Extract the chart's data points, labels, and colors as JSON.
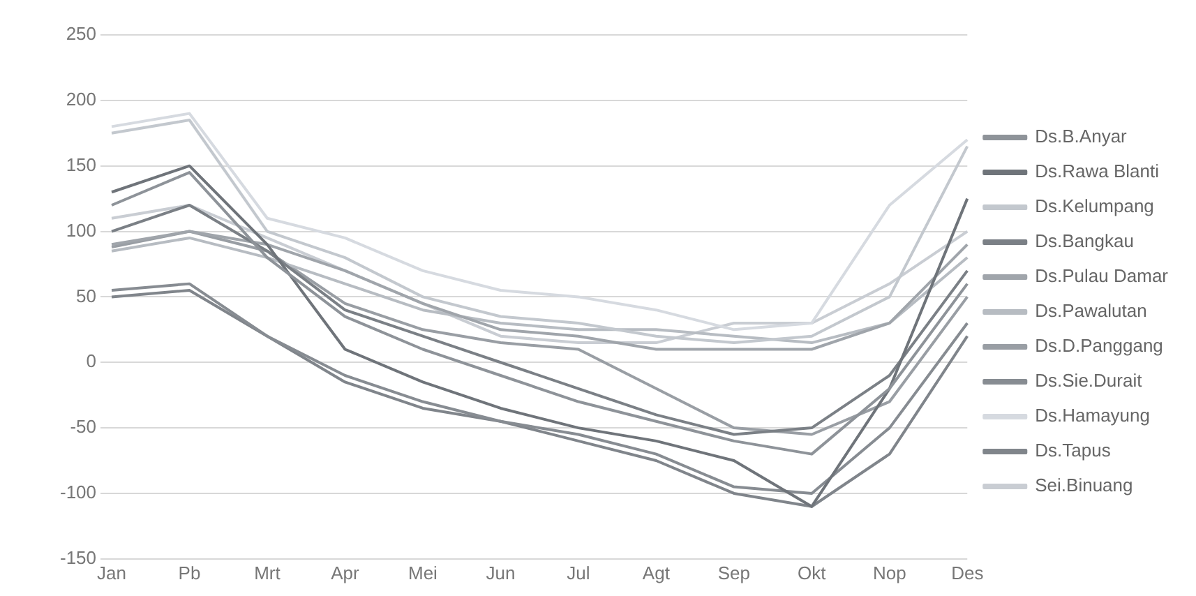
{
  "chart_data": {
    "type": "line",
    "categories": [
      "Jan",
      "Pb",
      "Mrt",
      "Apr",
      "Mei",
      "Jun",
      "Jul",
      "Agt",
      "Sep",
      "Okt",
      "Nop",
      "Des"
    ],
    "series": [
      {
        "name": "Ds.B.Anyar",
        "color": "#8e9399",
        "values": [
          120,
          145,
          80,
          35,
          10,
          -10,
          -30,
          -45,
          -60,
          -70,
          -20,
          60
        ]
      },
      {
        "name": "Ds.Rawa Blanti",
        "color": "#6f747a",
        "values": [
          130,
          150,
          90,
          10,
          -15,
          -35,
          -50,
          -60,
          -75,
          -110,
          -20,
          125
        ]
      },
      {
        "name": "Ds.Kelumpang",
        "color": "#c3c8ce",
        "values": [
          175,
          185,
          100,
          80,
          50,
          35,
          30,
          20,
          15,
          20,
          50,
          165
        ]
      },
      {
        "name": "Ds.Bangkau",
        "color": "#7b8086",
        "values": [
          100,
          120,
          85,
          40,
          20,
          0,
          -20,
          -40,
          -55,
          -50,
          -10,
          70
        ]
      },
      {
        "name": "Ds.Pulau Damar",
        "color": "#a0a5ab",
        "values": [
          90,
          100,
          90,
          70,
          45,
          25,
          20,
          10,
          10,
          10,
          30,
          90
        ]
      },
      {
        "name": "Ds.Pawalutan",
        "color": "#b7bcc2",
        "values": [
          85,
          95,
          80,
          60,
          40,
          30,
          25,
          25,
          20,
          15,
          30,
          80
        ]
      },
      {
        "name": "Ds.D.Panggang",
        "color": "#999ea4",
        "values": [
          88,
          100,
          85,
          45,
          25,
          15,
          10,
          -20,
          -50,
          -55,
          -30,
          50
        ]
      },
      {
        "name": "Ds.Sie.Durait",
        "color": "#878c92",
        "values": [
          55,
          60,
          20,
          -10,
          -30,
          -45,
          -55,
          -70,
          -95,
          -100,
          -50,
          30
        ]
      },
      {
        "name": "Ds.Hamayung",
        "color": "#d6dae0",
        "values": [
          180,
          190,
          110,
          95,
          70,
          55,
          50,
          40,
          25,
          30,
          120,
          170
        ]
      },
      {
        "name": "Ds.Tapus",
        "color": "#80858b",
        "values": [
          50,
          55,
          20,
          -15,
          -35,
          -45,
          -60,
          -75,
          -100,
          -110,
          -70,
          20
        ]
      },
      {
        "name": "Sei.Binuang",
        "color": "#c9cdd3",
        "values": [
          110,
          120,
          95,
          70,
          45,
          20,
          15,
          15,
          30,
          30,
          60,
          100
        ]
      }
    ],
    "ylim": [
      -150,
      250
    ],
    "yticks": [
      -150,
      -100,
      -50,
      0,
      50,
      100,
      150,
      200,
      250
    ],
    "grid": "y",
    "legend": "right",
    "marker": "none"
  }
}
